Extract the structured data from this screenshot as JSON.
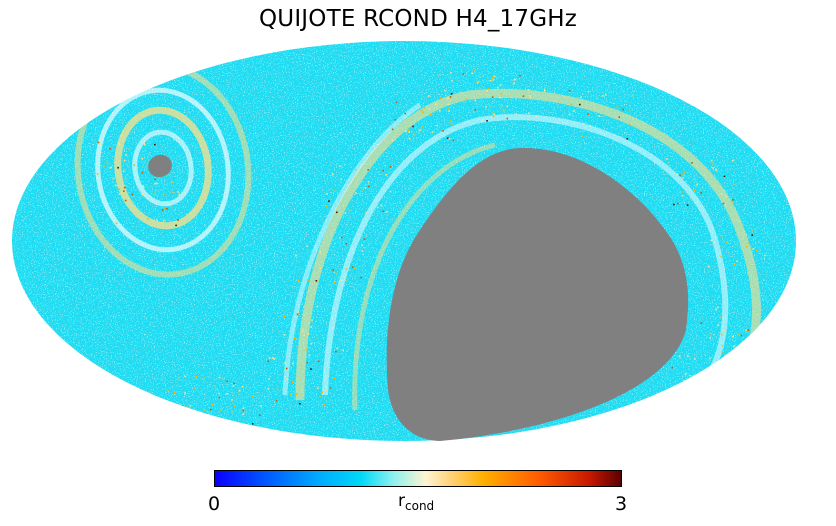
{
  "title": "QUIJOTE RCOND H4_17GHz",
  "map": {
    "projection": "mollweide",
    "background_color": "#1fdcf2",
    "masked_color": "#808080",
    "feature_colors": [
      "#ffffff",
      "#ffe08a",
      "#ffb400",
      "#c06000",
      "#4a1500"
    ]
  },
  "colorbar": {
    "min_label": "0",
    "max_label": "3",
    "label_main": "r",
    "label_sub": "cond",
    "colormap": [
      "#0b00ff",
      "#00a8ff",
      "#00d9f7",
      "#fff4d0",
      "#ffb000",
      "#ff5a00",
      "#5c0000"
    ]
  }
}
